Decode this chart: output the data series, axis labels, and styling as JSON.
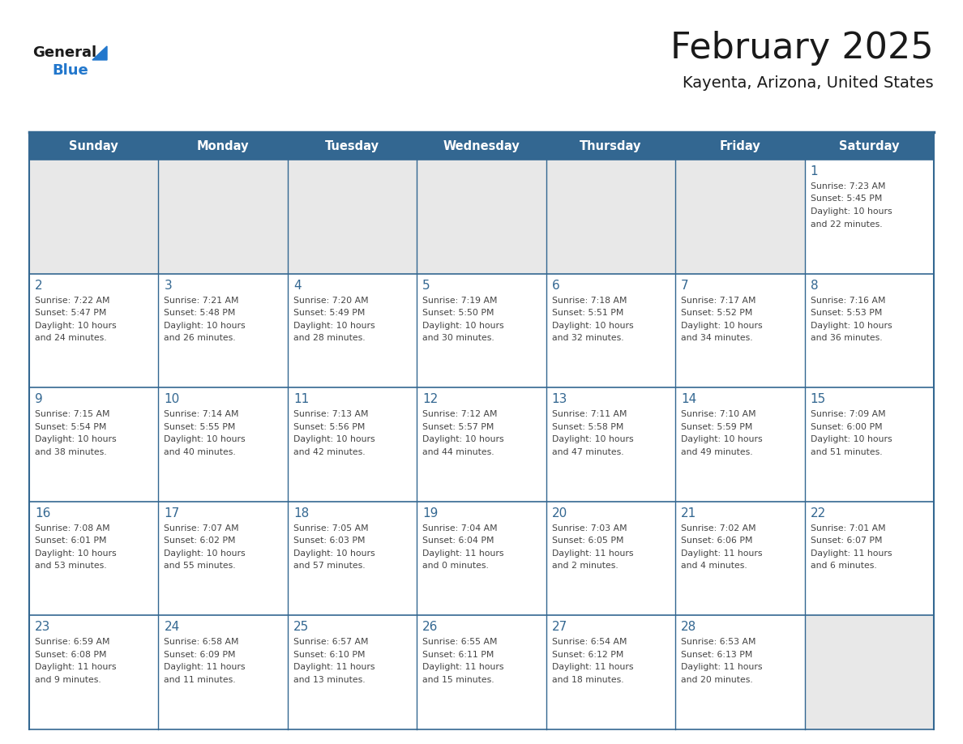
{
  "title": "February 2025",
  "subtitle": "Kayenta, Arizona, United States",
  "header_bg_color": "#336791",
  "header_text_color": "#ffffff",
  "cell_bg_color": "#e8e8e8",
  "cell_white_color": "#ffffff",
  "border_color": "#336791",
  "day_headers": [
    "Sunday",
    "Monday",
    "Tuesday",
    "Wednesday",
    "Thursday",
    "Friday",
    "Saturday"
  ],
  "title_color": "#1a1a1a",
  "subtitle_color": "#1a1a1a",
  "day_number_color": "#336791",
  "text_color": "#444444",
  "logo_general_color": "#1a1a1a",
  "logo_blue_color": "#2277cc",
  "calendar_data": [
    [
      null,
      null,
      null,
      null,
      null,
      null,
      {
        "day": 1,
        "sunrise": "7:23 AM",
        "sunset": "5:45 PM",
        "daylight_hours": 10,
        "daylight_minutes": 22
      }
    ],
    [
      {
        "day": 2,
        "sunrise": "7:22 AM",
        "sunset": "5:47 PM",
        "daylight_hours": 10,
        "daylight_minutes": 24
      },
      {
        "day": 3,
        "sunrise": "7:21 AM",
        "sunset": "5:48 PM",
        "daylight_hours": 10,
        "daylight_minutes": 26
      },
      {
        "day": 4,
        "sunrise": "7:20 AM",
        "sunset": "5:49 PM",
        "daylight_hours": 10,
        "daylight_minutes": 28
      },
      {
        "day": 5,
        "sunrise": "7:19 AM",
        "sunset": "5:50 PM",
        "daylight_hours": 10,
        "daylight_minutes": 30
      },
      {
        "day": 6,
        "sunrise": "7:18 AM",
        "sunset": "5:51 PM",
        "daylight_hours": 10,
        "daylight_minutes": 32
      },
      {
        "day": 7,
        "sunrise": "7:17 AM",
        "sunset": "5:52 PM",
        "daylight_hours": 10,
        "daylight_minutes": 34
      },
      {
        "day": 8,
        "sunrise": "7:16 AM",
        "sunset": "5:53 PM",
        "daylight_hours": 10,
        "daylight_minutes": 36
      }
    ],
    [
      {
        "day": 9,
        "sunrise": "7:15 AM",
        "sunset": "5:54 PM",
        "daylight_hours": 10,
        "daylight_minutes": 38
      },
      {
        "day": 10,
        "sunrise": "7:14 AM",
        "sunset": "5:55 PM",
        "daylight_hours": 10,
        "daylight_minutes": 40
      },
      {
        "day": 11,
        "sunrise": "7:13 AM",
        "sunset": "5:56 PM",
        "daylight_hours": 10,
        "daylight_minutes": 42
      },
      {
        "day": 12,
        "sunrise": "7:12 AM",
        "sunset": "5:57 PM",
        "daylight_hours": 10,
        "daylight_minutes": 44
      },
      {
        "day": 13,
        "sunrise": "7:11 AM",
        "sunset": "5:58 PM",
        "daylight_hours": 10,
        "daylight_minutes": 47
      },
      {
        "day": 14,
        "sunrise": "7:10 AM",
        "sunset": "5:59 PM",
        "daylight_hours": 10,
        "daylight_minutes": 49
      },
      {
        "day": 15,
        "sunrise": "7:09 AM",
        "sunset": "6:00 PM",
        "daylight_hours": 10,
        "daylight_minutes": 51
      }
    ],
    [
      {
        "day": 16,
        "sunrise": "7:08 AM",
        "sunset": "6:01 PM",
        "daylight_hours": 10,
        "daylight_minutes": 53
      },
      {
        "day": 17,
        "sunrise": "7:07 AM",
        "sunset": "6:02 PM",
        "daylight_hours": 10,
        "daylight_minutes": 55
      },
      {
        "day": 18,
        "sunrise": "7:05 AM",
        "sunset": "6:03 PM",
        "daylight_hours": 10,
        "daylight_minutes": 57
      },
      {
        "day": 19,
        "sunrise": "7:04 AM",
        "sunset": "6:04 PM",
        "daylight_hours": 11,
        "daylight_minutes": 0
      },
      {
        "day": 20,
        "sunrise": "7:03 AM",
        "sunset": "6:05 PM",
        "daylight_hours": 11,
        "daylight_minutes": 2
      },
      {
        "day": 21,
        "sunrise": "7:02 AM",
        "sunset": "6:06 PM",
        "daylight_hours": 11,
        "daylight_minutes": 4
      },
      {
        "day": 22,
        "sunrise": "7:01 AM",
        "sunset": "6:07 PM",
        "daylight_hours": 11,
        "daylight_minutes": 6
      }
    ],
    [
      {
        "day": 23,
        "sunrise": "6:59 AM",
        "sunset": "6:08 PM",
        "daylight_hours": 11,
        "daylight_minutes": 9
      },
      {
        "day": 24,
        "sunrise": "6:58 AM",
        "sunset": "6:09 PM",
        "daylight_hours": 11,
        "daylight_minutes": 11
      },
      {
        "day": 25,
        "sunrise": "6:57 AM",
        "sunset": "6:10 PM",
        "daylight_hours": 11,
        "daylight_minutes": 13
      },
      {
        "day": 26,
        "sunrise": "6:55 AM",
        "sunset": "6:11 PM",
        "daylight_hours": 11,
        "daylight_minutes": 15
      },
      {
        "day": 27,
        "sunrise": "6:54 AM",
        "sunset": "6:12 PM",
        "daylight_hours": 11,
        "daylight_minutes": 18
      },
      {
        "day": 28,
        "sunrise": "6:53 AM",
        "sunset": "6:13 PM",
        "daylight_hours": 11,
        "daylight_minutes": 20
      },
      null
    ]
  ]
}
